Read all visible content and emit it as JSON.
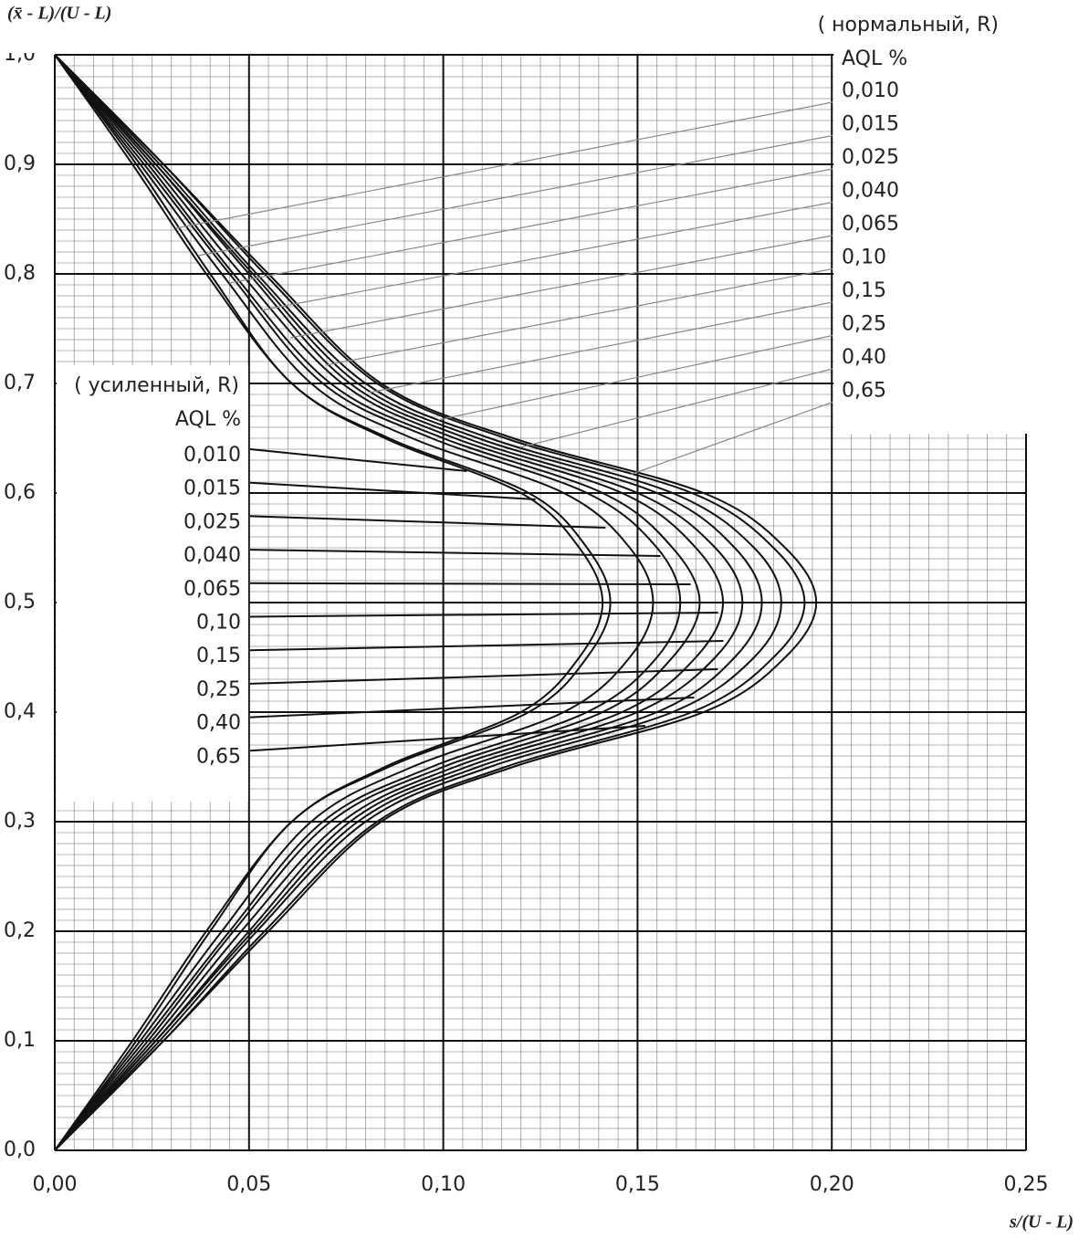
{
  "chart_data": {
    "type": "line",
    "ylabel": "(x̄ - L)/(U - L)",
    "xlabel": "s/(U - L)",
    "xlim": [
      0,
      0.25
    ],
    "ylim": [
      0,
      1
    ],
    "xticks": [
      {
        "value": 0,
        "label": "0,00"
      },
      {
        "value": 0.05,
        "label": "0,05"
      },
      {
        "value": 0.1,
        "label": "0,10"
      },
      {
        "value": 0.15,
        "label": "0,15"
      },
      {
        "value": 0.2,
        "label": "0,20"
      },
      {
        "value": 0.25,
        "label": "0,25"
      }
    ],
    "yticks": [
      {
        "value": 0,
        "label": "0,0"
      },
      {
        "value": 0.1,
        "label": "0,1"
      },
      {
        "value": 0.2,
        "label": "0,2"
      },
      {
        "value": 0.3,
        "label": "0,3"
      },
      {
        "value": 0.4,
        "label": "0,4"
      },
      {
        "value": 0.5,
        "label": "0,5"
      },
      {
        "value": 0.6,
        "label": "0,6"
      },
      {
        "value": 0.7,
        "label": "0,7"
      },
      {
        "value": 0.8,
        "label": "0,8"
      },
      {
        "value": 0.9,
        "label": "0,9"
      },
      {
        "value": 1,
        "label": "1,0"
      }
    ],
    "grid": true,
    "minor_grid": true,
    "color": "#111111",
    "y": [
      0,
      0.1,
      0.2,
      0.3,
      0.35,
      0.4,
      0.45,
      0.5,
      0.55,
      0.6,
      0.65,
      0.7,
      0.8,
      0.9,
      1
    ],
    "series": [
      {
        "x": [
          0,
          0.02,
          0.039,
          0.061,
          0.085,
          0.12,
          0.135,
          0.141,
          0.135,
          0.12,
          0.085,
          0.061,
          0.039,
          0.02,
          0
        ]
      },
      {
        "x": [
          0,
          0.021,
          0.04,
          0.061,
          0.086,
          0.122,
          0.137,
          0.143,
          0.137,
          0.122,
          0.086,
          0.061,
          0.04,
          0.021,
          0
        ]
      },
      {
        "x": [
          0,
          0.022,
          0.043,
          0.066,
          0.092,
          0.131,
          0.148,
          0.154,
          0.148,
          0.131,
          0.092,
          0.066,
          0.043,
          0.022,
          0
        ]
      },
      {
        "x": [
          0,
          0.023,
          0.045,
          0.069,
          0.097,
          0.137,
          0.155,
          0.161,
          0.155,
          0.137,
          0.097,
          0.069,
          0.045,
          0.023,
          0
        ]
      },
      {
        "x": [
          0,
          0.024,
          0.046,
          0.071,
          0.1,
          0.141,
          0.159,
          0.166,
          0.159,
          0.141,
          0.1,
          0.071,
          0.046,
          0.024,
          0
        ]
      },
      {
        "x": [
          0,
          0.025,
          0.048,
          0.074,
          0.103,
          0.146,
          0.165,
          0.172,
          0.165,
          0.146,
          0.103,
          0.074,
          0.048,
          0.025,
          0
        ]
      },
      {
        "x": [
          0,
          0.026,
          0.05,
          0.076,
          0.106,
          0.15,
          0.17,
          0.177,
          0.17,
          0.15,
          0.106,
          0.076,
          0.05,
          0.026,
          0
        ]
      },
      {
        "x": [
          0,
          0.026,
          0.051,
          0.078,
          0.109,
          0.155,
          0.175,
          0.182,
          0.175,
          0.155,
          0.109,
          0.078,
          0.051,
          0.026,
          0
        ]
      },
      {
        "x": [
          0,
          0.027,
          0.052,
          0.08,
          0.112,
          0.159,
          0.18,
          0.187,
          0.18,
          0.159,
          0.112,
          0.08,
          0.052,
          0.027,
          0
        ]
      },
      {
        "x": [
          0,
          0.028,
          0.054,
          0.083,
          0.116,
          0.164,
          0.185,
          0.193,
          0.185,
          0.164,
          0.116,
          0.083,
          0.054,
          0.028,
          0
        ]
      },
      {
        "x": [
          0,
          0.028,
          0.055,
          0.084,
          0.118,
          0.167,
          0.188,
          0.196,
          0.188,
          0.167,
          0.118,
          0.084,
          0.055,
          0.028,
          0
        ]
      }
    ],
    "normal_legend": {
      "title": "( нормальный,  R)",
      "unit": "AQL %",
      "labels": [
        "0,010",
        "0,015",
        "0,025",
        "0,040",
        "0,065",
        "0,10",
        "0,15",
        "0,25",
        "0,40",
        "0,65"
      ]
    },
    "tightened_legend": {
      "title": "( усиленный,  R)",
      "unit": "AQL %",
      "labels": [
        "0,010",
        "0,015",
        "0,025",
        "0,040",
        "0,065",
        "0,10",
        "0,15",
        "0,25",
        "0,40",
        "0,65"
      ]
    }
  }
}
